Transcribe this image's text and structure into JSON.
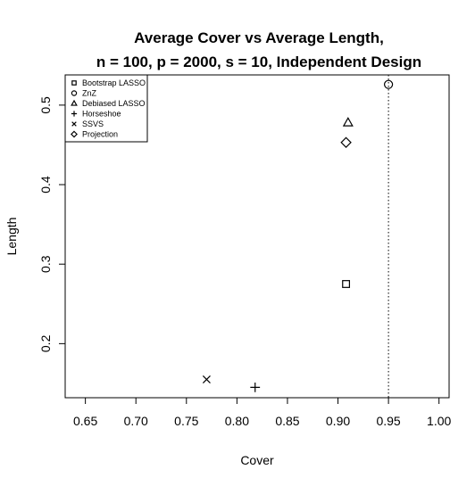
{
  "chart_data": {
    "type": "scatter",
    "title_lines": [
      "Average Cover vs Average Length,",
      "n = 100, p = 2000, s = 10, Independent Design"
    ],
    "xlabel": "Cover",
    "ylabel": "Length",
    "xlim": [
      0.63,
      1.01
    ],
    "ylim": [
      0.132,
      0.538
    ],
    "x_ticks": [
      0.65,
      0.7,
      0.75,
      0.8,
      0.85,
      0.9,
      0.95,
      1.0
    ],
    "x_tick_labels": [
      "0.65",
      "0.70",
      "0.75",
      "0.80",
      "0.85",
      "0.90",
      "0.95",
      "1.00"
    ],
    "y_ticks": [
      0.2,
      0.3,
      0.4,
      0.5
    ],
    "y_tick_labels": [
      "0.2",
      "0.3",
      "0.4",
      "0.5"
    ],
    "reference_line": {
      "x": 0.95,
      "style": "dotted"
    },
    "legend_position": "top-left",
    "grid": false,
    "series": [
      {
        "name": "Bootstrap LASSO",
        "marker": "square",
        "x": 0.908,
        "y": 0.275
      },
      {
        "name": "ZnZ",
        "marker": "circle",
        "x": 0.95,
        "y": 0.526
      },
      {
        "name": "Debiased LASSO",
        "marker": "triangle",
        "x": 0.91,
        "y": 0.478
      },
      {
        "name": "Horseshoe",
        "marker": "plus",
        "x": 0.818,
        "y": 0.145
      },
      {
        "name": "SSVS",
        "marker": "cross",
        "x": 0.77,
        "y": 0.155
      },
      {
        "name": "Projection",
        "marker": "diamond",
        "x": 0.908,
        "y": 0.453
      }
    ]
  }
}
